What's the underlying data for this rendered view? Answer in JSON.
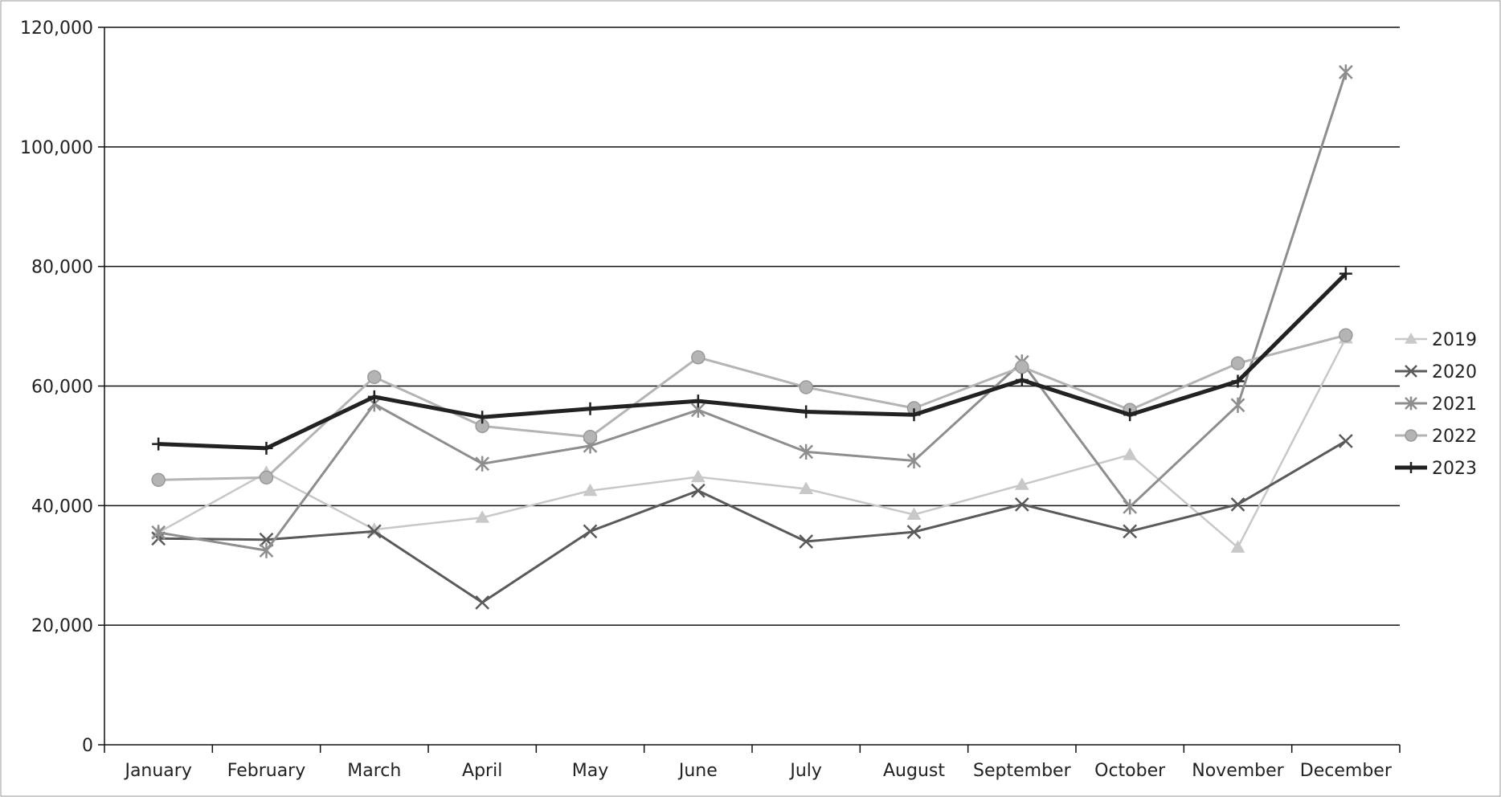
{
  "chart_data": {
    "type": "line",
    "categories": [
      "January",
      "February",
      "March",
      "April",
      "May",
      "June",
      "July",
      "August",
      "September",
      "October",
      "November",
      "December"
    ],
    "ylim": [
      0,
      120000
    ],
    "yticks": [
      0,
      20000,
      40000,
      60000,
      80000,
      100000,
      120000
    ],
    "ytick_labels": [
      "0",
      "20,000",
      "40,000",
      "60,000",
      "80,000",
      "100,000",
      "120,000"
    ],
    "grid": true,
    "legend_position": "right",
    "series": [
      {
        "name": "2019",
        "marker": "triangle",
        "color": "#c8c8c8",
        "width": 2.5,
        "values": [
          35500,
          45500,
          36000,
          38000,
          42500,
          44800,
          42800,
          38500,
          43500,
          48500,
          33000,
          68000
        ]
      },
      {
        "name": "2020",
        "marker": "x",
        "color": "#5a5a5a",
        "width": 3,
        "values": [
          34500,
          34300,
          35700,
          23800,
          35700,
          42500,
          34000,
          35600,
          40200,
          35700,
          40200,
          50800
        ]
      },
      {
        "name": "2021",
        "marker": "star",
        "color": "#8e8e8e",
        "width": 3,
        "values": [
          35500,
          32500,
          57000,
          47000,
          50000,
          56000,
          49000,
          47500,
          64000,
          39800,
          56800,
          112500
        ]
      },
      {
        "name": "2022",
        "marker": "circle",
        "color": "#b4b4b4",
        "width": 3,
        "values": [
          44300,
          44700,
          61500,
          53300,
          51500,
          64800,
          59800,
          56300,
          63200,
          56000,
          63800,
          68500
        ]
      },
      {
        "name": "2023",
        "marker": "plus",
        "color": "#222222",
        "width": 5,
        "values": [
          50300,
          49600,
          58200,
          54800,
          56200,
          57500,
          55700,
          55200,
          61000,
          55200,
          60800,
          78800
        ]
      }
    ]
  }
}
